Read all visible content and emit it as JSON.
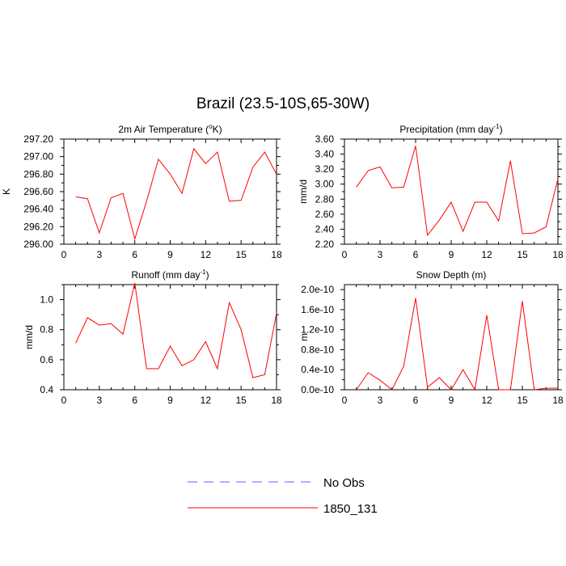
{
  "page": {
    "title": "Brazil (23.5-10S,65-30W)"
  },
  "legend": {
    "entries": [
      {
        "label": "No Obs",
        "color": "#6060ff",
        "dashed": true
      },
      {
        "label": "1850_131",
        "color": "#ff0000",
        "dashed": false
      }
    ]
  },
  "chart_data": [
    {
      "type": "line",
      "id": "temp",
      "title": "2m Air Temperature (°K)",
      "title_parts": [
        "2m Air Temperature (",
        "o",
        "K)"
      ],
      "ylabel": "K",
      "xlim": [
        0,
        18
      ],
      "ylim": [
        296.0,
        297.2
      ],
      "xticks": [
        0,
        3,
        6,
        9,
        12,
        15,
        18
      ],
      "xtick_labels": [
        "0",
        "3",
        "6",
        "9",
        "12",
        "15",
        "18"
      ],
      "yticks": [
        296.0,
        296.2,
        296.4,
        296.6,
        296.8,
        297.0,
        297.2
      ],
      "ytick_labels": [
        "296.00",
        "296.20",
        "296.40",
        "296.60",
        "296.80",
        "297.00",
        "297.20"
      ],
      "series": [
        {
          "name": "1850_131",
          "color": "#ff0000",
          "x": [
            1,
            2,
            3,
            4,
            5,
            6,
            7,
            8,
            9,
            10,
            11,
            12,
            13,
            14,
            15,
            16,
            17,
            18
          ],
          "values": [
            296.54,
            296.52,
            296.13,
            296.53,
            296.58,
            296.06,
            296.49,
            296.97,
            296.8,
            296.58,
            297.09,
            296.92,
            297.05,
            296.49,
            296.5,
            296.88,
            297.05,
            296.8
          ]
        }
      ]
    },
    {
      "type": "line",
      "id": "precip",
      "title": "Precipitation (mm day-1)",
      "title_parts": [
        "Precipitation (mm day",
        "-1",
        ")"
      ],
      "ylabel": "mm/d",
      "xlim": [
        0,
        18
      ],
      "ylim": [
        2.2,
        3.6
      ],
      "xticks": [
        0,
        3,
        6,
        9,
        12,
        15,
        18
      ],
      "xtick_labels": [
        "0",
        "3",
        "6",
        "9",
        "12",
        "15",
        "18"
      ],
      "yticks": [
        2.2,
        2.4,
        2.6,
        2.8,
        3.0,
        3.2,
        3.4,
        3.6
      ],
      "ytick_labels": [
        "2.20",
        "2.40",
        "2.60",
        "2.80",
        "3.00",
        "3.20",
        "3.40",
        "3.60"
      ],
      "series": [
        {
          "name": "1850_131",
          "color": "#ff0000",
          "x": [
            1,
            2,
            3,
            4,
            5,
            6,
            7,
            8,
            9,
            10,
            11,
            12,
            13,
            14,
            15,
            16,
            17,
            18
          ],
          "values": [
            2.96,
            3.18,
            3.23,
            2.95,
            2.96,
            3.51,
            2.32,
            2.52,
            2.76,
            2.37,
            2.76,
            2.76,
            2.51,
            3.31,
            2.34,
            2.35,
            2.43,
            3.07
          ]
        }
      ]
    },
    {
      "type": "line",
      "id": "runoff",
      "title": "Runoff (mm day-1)",
      "title_parts": [
        "Runoff (mm day",
        "-1",
        ")"
      ],
      "ylabel": "mm/d",
      "xlim": [
        0,
        18
      ],
      "ylim": [
        0.4,
        1.1
      ],
      "xticks": [
        0,
        3,
        6,
        9,
        12,
        15,
        18
      ],
      "xtick_labels": [
        "0",
        "3",
        "6",
        "9",
        "12",
        "15",
        "18"
      ],
      "yticks": [
        0.4,
        0.6,
        0.8,
        1.0
      ],
      "ytick_labels": [
        "0.4",
        "0.6",
        "0.8",
        "1.0"
      ],
      "series": [
        {
          "name": "1850_131",
          "color": "#ff0000",
          "x": [
            1,
            2,
            3,
            4,
            5,
            6,
            7,
            8,
            9,
            10,
            11,
            12,
            13,
            14,
            15,
            16,
            17,
            18
          ],
          "values": [
            0.71,
            0.88,
            0.83,
            0.84,
            0.77,
            1.11,
            0.54,
            0.54,
            0.69,
            0.56,
            0.6,
            0.72,
            0.54,
            0.98,
            0.8,
            0.48,
            0.5,
            0.91
          ]
        }
      ]
    },
    {
      "type": "line",
      "id": "snow",
      "title": "Snow Depth (m)",
      "title_parts": [
        "Snow Depth (m)",
        "",
        ""
      ],
      "ylabel": "m",
      "xlim": [
        0,
        18
      ],
      "ylim": [
        0.0,
        2.1
      ],
      "xticks": [
        0,
        3,
        6,
        9,
        12,
        15,
        18
      ],
      "xtick_labels": [
        "0",
        "3",
        "6",
        "9",
        "12",
        "15",
        "18"
      ],
      "yticks": [
        0.0,
        0.4,
        0.8,
        1.2,
        1.6,
        2.0
      ],
      "ytick_labels": [
        "0.0e-10",
        "0.4e-10",
        "0.8e-10",
        "1.2e-10",
        "1.6e-10",
        "2.0e-10"
      ],
      "series": [
        {
          "name": "1850_131",
          "color": "#ff0000",
          "x": [
            1,
            2,
            3,
            4,
            5,
            6,
            7,
            8,
            9,
            10,
            11,
            12,
            13,
            14,
            15,
            16,
            17,
            18
          ],
          "values": [
            0.0,
            0.34,
            0.19,
            0.0,
            0.47,
            1.83,
            0.05,
            0.24,
            0.0,
            0.4,
            0.0,
            1.49,
            0.0,
            0.0,
            1.77,
            0.0,
            0.03,
            0.03
          ]
        }
      ]
    }
  ]
}
